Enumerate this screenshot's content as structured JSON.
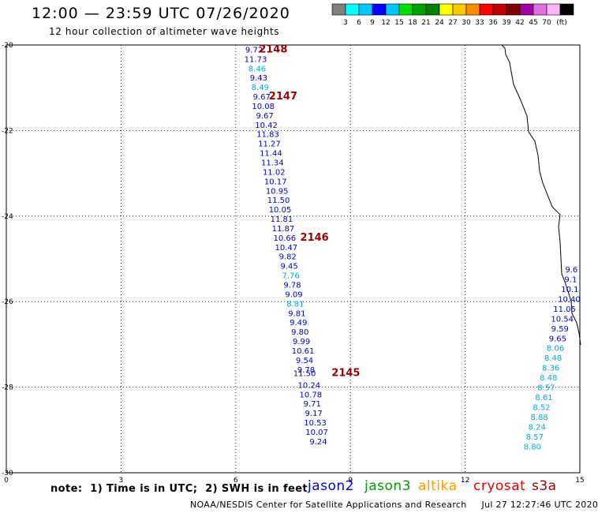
{
  "header": {
    "title": "12:00 — 23:59 UTC 07/26/2020",
    "subtitle": "12 hour collection of altimeter wave heights"
  },
  "legend": {
    "colors": [
      "#808080",
      "#00ffff",
      "#00c8ff",
      "#0000ff",
      "#00c8ff",
      "#00e000",
      "#00a000",
      "#008000",
      "#ffff00",
      "#ffc800",
      "#ff8c00",
      "#ff0000",
      "#c00000",
      "#800000",
      "#a000a0",
      "#e070e0",
      "#ffb4ff",
      "#000000"
    ],
    "labels": [
      "3",
      "6",
      "9",
      "12",
      "15",
      "18",
      "21",
      "24",
      "27",
      "30",
      "33",
      "36",
      "39",
      "42",
      "45",
      "70"
    ],
    "unit": "(ft)"
  },
  "footer": {
    "note": "note:  1) Time is in UTC;  2) SWH is in feet",
    "satellites": [
      {
        "name": "jason2",
        "color": "#0000dd"
      },
      {
        "name": "jason3",
        "color": "#00a000"
      },
      {
        "name": "altika",
        "color": "#ff9900"
      },
      {
        "name": "cryosat",
        "color": "#ee0000"
      },
      {
        "name": "s3a",
        "color": "#990000"
      }
    ],
    "credit": "NOAA/NESDIS Center for Satellite Applications and Research     Jul 27 12:27:46 UTC 2020"
  },
  "chart_data": {
    "type": "scatter",
    "xlim": [
      0,
      15
    ],
    "ylim": [
      -30,
      -20
    ],
    "xticks": [
      "0",
      "3",
      "6",
      "9",
      "12",
      "15"
    ],
    "yticks": [
      "-20",
      "-22",
      "-24",
      "-26",
      "-28",
      "-30"
    ],
    "grid": true,
    "series": [
      {
        "name": "jason2",
        "points": [
          {
            "x": 6.48,
            "y": -20.1,
            "v": "9.72",
            "c": "#0000cc"
          },
          {
            "x": 6.52,
            "y": -20.32,
            "v": "11.73",
            "c": "#0000cc"
          },
          {
            "x": 6.56,
            "y": -20.54,
            "v": "8.46",
            "c": "#00aadd"
          },
          {
            "x": 6.6,
            "y": -20.76,
            "v": "9.43",
            "c": "#0000cc"
          },
          {
            "x": 6.64,
            "y": -20.98,
            "v": "8.49",
            "c": "#00aadd"
          },
          {
            "x": 6.68,
            "y": -21.2,
            "v": "9.67",
            "c": "#0000cc"
          },
          {
            "x": 6.72,
            "y": -21.42,
            "v": "10.08",
            "c": "#0000cc"
          },
          {
            "x": 6.76,
            "y": -21.64,
            "v": "9.67",
            "c": "#0000cc"
          },
          {
            "x": 6.8,
            "y": -21.86,
            "v": "10.42",
            "c": "#0000cc"
          },
          {
            "x": 6.84,
            "y": -22.08,
            "v": "11.83",
            "c": "#0000cc"
          },
          {
            "x": 6.88,
            "y": -22.3,
            "v": "11.27",
            "c": "#0000cc"
          },
          {
            "x": 6.92,
            "y": -22.52,
            "v": "11.44",
            "c": "#0000cc"
          },
          {
            "x": 6.96,
            "y": -22.74,
            "v": "11.34",
            "c": "#0000cc"
          },
          {
            "x": 7.0,
            "y": -22.96,
            "v": "11.02",
            "c": "#0000cc"
          },
          {
            "x": 7.04,
            "y": -23.18,
            "v": "10.17",
            "c": "#0000cc"
          },
          {
            "x": 7.08,
            "y": -23.4,
            "v": "10.95",
            "c": "#0000cc"
          },
          {
            "x": 7.12,
            "y": -23.62,
            "v": "11.50",
            "c": "#0000cc"
          },
          {
            "x": 7.16,
            "y": -23.84,
            "v": "10.05",
            "c": "#0000cc"
          },
          {
            "x": 7.2,
            "y": -24.06,
            "v": "11.81",
            "c": "#0000cc"
          },
          {
            "x": 7.24,
            "y": -24.28,
            "v": "11.87",
            "c": "#0000cc"
          },
          {
            "x": 7.28,
            "y": -24.5,
            "v": "10.66",
            "c": "#0000cc"
          },
          {
            "x": 7.32,
            "y": -24.72,
            "v": "10.47",
            "c": "#0000cc"
          },
          {
            "x": 7.36,
            "y": -24.94,
            "v": "9.82",
            "c": "#0000cc"
          },
          {
            "x": 7.4,
            "y": -25.16,
            "v": "9.45",
            "c": "#0000cc"
          },
          {
            "x": 7.44,
            "y": -25.38,
            "v": "7.76",
            "c": "#00aadd"
          },
          {
            "x": 7.48,
            "y": -25.6,
            "v": "9.78",
            "c": "#0000cc"
          },
          {
            "x": 7.52,
            "y": -25.82,
            "v": "9.09",
            "c": "#0000cc"
          },
          {
            "x": 7.56,
            "y": -26.04,
            "v": "8.81",
            "c": "#00aadd"
          },
          {
            "x": 7.6,
            "y": -26.26,
            "v": "9.81",
            "c": "#0000cc"
          },
          {
            "x": 7.64,
            "y": -26.48,
            "v": "9.49",
            "c": "#0000cc"
          },
          {
            "x": 7.68,
            "y": -26.7,
            "v": "9.80",
            "c": "#0000cc"
          },
          {
            "x": 7.72,
            "y": -26.92,
            "v": "9.99",
            "c": "#0000cc"
          },
          {
            "x": 7.76,
            "y": -27.14,
            "v": "10.61",
            "c": "#0000cc"
          },
          {
            "x": 7.8,
            "y": -27.36,
            "v": "9.54",
            "c": "#0000cc"
          },
          {
            "x": 7.84,
            "y": -27.58,
            "v": "9.78",
            "c": "#0000cc"
          },
          {
            "x": 7.8,
            "y": -27.67,
            "v": "11.50",
            "c": "#0000cc"
          },
          {
            "x": 7.92,
            "y": -27.94,
            "v": "10.24",
            "c": "#0000cc"
          },
          {
            "x": 7.96,
            "y": -28.16,
            "v": "10.78",
            "c": "#0000cc"
          },
          {
            "x": 8.0,
            "y": -28.38,
            "v": "9.71",
            "c": "#0000cc"
          },
          {
            "x": 8.04,
            "y": -28.6,
            "v": "9.17",
            "c": "#0000cc"
          },
          {
            "x": 8.08,
            "y": -28.82,
            "v": "10.53",
            "c": "#0000cc"
          },
          {
            "x": 8.12,
            "y": -29.04,
            "v": "10.07",
            "c": "#0000cc"
          },
          {
            "x": 8.16,
            "y": -29.26,
            "v": "9.24",
            "c": "#0000cc"
          },
          {
            "x": 14.78,
            "y": -25.24,
            "v": "9.6",
            "c": "#0000cc"
          },
          {
            "x": 14.76,
            "y": -25.47,
            "v": "9.1",
            "c": "#0000cc"
          },
          {
            "x": 14.74,
            "y": -25.7,
            "v": "10.1",
            "c": "#0000cc"
          },
          {
            "x": 14.72,
            "y": -25.93,
            "v": "10.40",
            "c": "#0000cc"
          },
          {
            "x": 14.6,
            "y": -26.16,
            "v": "11.05",
            "c": "#0000cc"
          },
          {
            "x": 14.54,
            "y": -26.39,
            "v": "10.54",
            "c": "#0000cc"
          },
          {
            "x": 14.48,
            "y": -26.62,
            "v": "9.59",
            "c": "#0000cc"
          },
          {
            "x": 14.42,
            "y": -26.85,
            "v": "9.65",
            "c": "#0000cc"
          },
          {
            "x": 14.36,
            "y": -27.08,
            "v": "8.06",
            "c": "#00aadd"
          },
          {
            "x": 14.3,
            "y": -27.31,
            "v": "8.48",
            "c": "#00aadd"
          },
          {
            "x": 14.24,
            "y": -27.54,
            "v": "8.36",
            "c": "#00aadd"
          },
          {
            "x": 14.18,
            "y": -27.77,
            "v": "8.48",
            "c": "#00aadd"
          },
          {
            "x": 14.12,
            "y": -28.0,
            "v": "8.57",
            "c": "#00aadd"
          },
          {
            "x": 14.06,
            "y": -28.23,
            "v": "8.61",
            "c": "#00aadd"
          },
          {
            "x": 14.0,
            "y": -28.46,
            "v": "8.52",
            "c": "#00aadd"
          },
          {
            "x": 13.94,
            "y": -28.69,
            "v": "8.88",
            "c": "#00aadd"
          },
          {
            "x": 13.88,
            "y": -28.92,
            "v": "8.24",
            "c": "#00aadd"
          },
          {
            "x": 13.82,
            "y": -29.15,
            "v": "8.57",
            "c": "#00aadd"
          },
          {
            "x": 13.76,
            "y": -29.38,
            "v": "8.80",
            "c": "#00aadd"
          }
        ]
      }
    ],
    "time_labels": [
      {
        "x": 6.98,
        "y": -20.1,
        "text": "2148"
      },
      {
        "x": 7.24,
        "y": -21.2,
        "text": "2147"
      },
      {
        "x": 8.06,
        "y": -24.5,
        "text": "2146"
      },
      {
        "x": 8.88,
        "y": -27.67,
        "text": "2145"
      }
    ]
  }
}
